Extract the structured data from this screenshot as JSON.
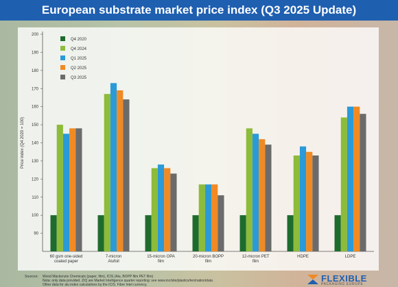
{
  "header": {
    "title": "European substrate market price index (Q3 2025 Update)"
  },
  "chart_data": {
    "type": "bar",
    "ylabel": "Price index (Q4 2020 = 100)",
    "ylim": [
      80,
      200
    ],
    "yticks": [
      90,
      100,
      110,
      120,
      130,
      140,
      150,
      160,
      170,
      180,
      190,
      200
    ],
    "categories": [
      "60 gsm one-sided coated paper",
      "7-micron Alufoil",
      "15-micron OPA film",
      "20-micron BOPP film",
      "12-micron PET film",
      "HDPE",
      "LDPE"
    ],
    "series": [
      {
        "name": "Q4 2020",
        "color": "#1e6b2e",
        "values": [
          100,
          100,
          100,
          100,
          100,
          100,
          100
        ]
      },
      {
        "name": "Q4 2024",
        "color": "#8dbb3a",
        "values": [
          150,
          167,
          126,
          117,
          148,
          133,
          154
        ]
      },
      {
        "name": "Q1 2025",
        "color": "#2a9ad8",
        "values": [
          145,
          173,
          128,
          117,
          145,
          138,
          160
        ]
      },
      {
        "name": "Q2 2025",
        "color": "#f08a24",
        "values": [
          148,
          169,
          126,
          117,
          142,
          135,
          160
        ]
      },
      {
        "name": "Q3 2025",
        "color": "#6b6b6b",
        "values": [
          148,
          164,
          123,
          111,
          139,
          133,
          156
        ]
      }
    ],
    "legend": "top-left",
    "grid": false
  },
  "footer": {
    "source_label": "Sources:",
    "line1": "Wood Mackenzie Chemicals (paper, film), ICIS (Alu, BOPP film PET film)",
    "line2": "Nota: only data provided. Z/Q are Market Intelligence quarter reporting: see www.inc/site/plastics/ten/nation/data",
    "line3": "Other data for alu index calculations by the ICIS. Fibre Intel currency."
  },
  "logo": {
    "name": "FLEXIBLE",
    "tagline": "PACKAGING EUROPE"
  }
}
